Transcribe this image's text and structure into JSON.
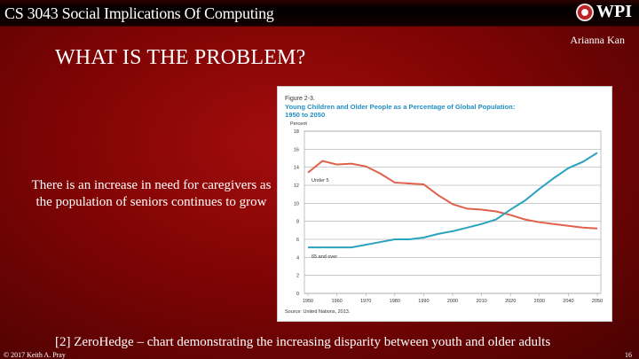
{
  "header": {
    "course_title": "CS 3043 Social Implications Of Computing",
    "logo_text": "WPI"
  },
  "author": "Arianna Kan",
  "slide_title": "WHAT IS THE PROBLEM?",
  "body_text": "There is an increase in need for caregivers as the population of seniors continues to grow",
  "caption": "[2] ZeroHedge – chart demonstrating the increasing disparity between youth and older adults",
  "footer": {
    "copyright": "© 2017 Keith A. Pray",
    "page_number": "16"
  },
  "colors": {
    "under5": "#e0604a",
    "over65": "#2aa3be",
    "title_blue": "#1f8fc4"
  },
  "chart_data": {
    "type": "line",
    "figure_label": "Figure 2-3.",
    "title": "Young Children and Older People as a Percentage of Global Population: 1950 to 2050",
    "ylabel": "Percent",
    "source": "Source: United Nations, 2013.",
    "ylim": [
      0,
      18
    ],
    "yticks": [
      "0",
      "2",
      "4",
      "6",
      "8",
      "10",
      "12",
      "14",
      "16",
      "18"
    ],
    "xlim": [
      1950,
      2050
    ],
    "xticks": [
      "1950",
      "1960",
      "1970",
      "1980",
      "1990",
      "2000",
      "2010",
      "2020",
      "2030",
      "2040",
      "2050"
    ],
    "grid": true,
    "x": [
      1950,
      1955,
      1960,
      1965,
      1970,
      1975,
      1980,
      1985,
      1990,
      1995,
      2000,
      2005,
      2010,
      2015,
      2020,
      2025,
      2030,
      2035,
      2040,
      2045,
      2050
    ],
    "series": [
      {
        "name": "Under 5",
        "values": [
          13.4,
          14.7,
          14.3,
          14.4,
          14.1,
          13.3,
          12.3,
          12.2,
          12.1,
          10.9,
          9.9,
          9.4,
          9.3,
          9.1,
          8.7,
          8.2,
          7.9,
          7.7,
          7.5,
          7.3,
          7.2
        ]
      },
      {
        "name": "65 and over",
        "values": [
          5.1,
          5.1,
          5.1,
          5.1,
          5.4,
          5.7,
          6.0,
          6.0,
          6.2,
          6.6,
          6.9,
          7.3,
          7.7,
          8.2,
          9.3,
          10.3,
          11.6,
          12.8,
          13.9,
          14.6,
          15.6
        ]
      }
    ]
  }
}
